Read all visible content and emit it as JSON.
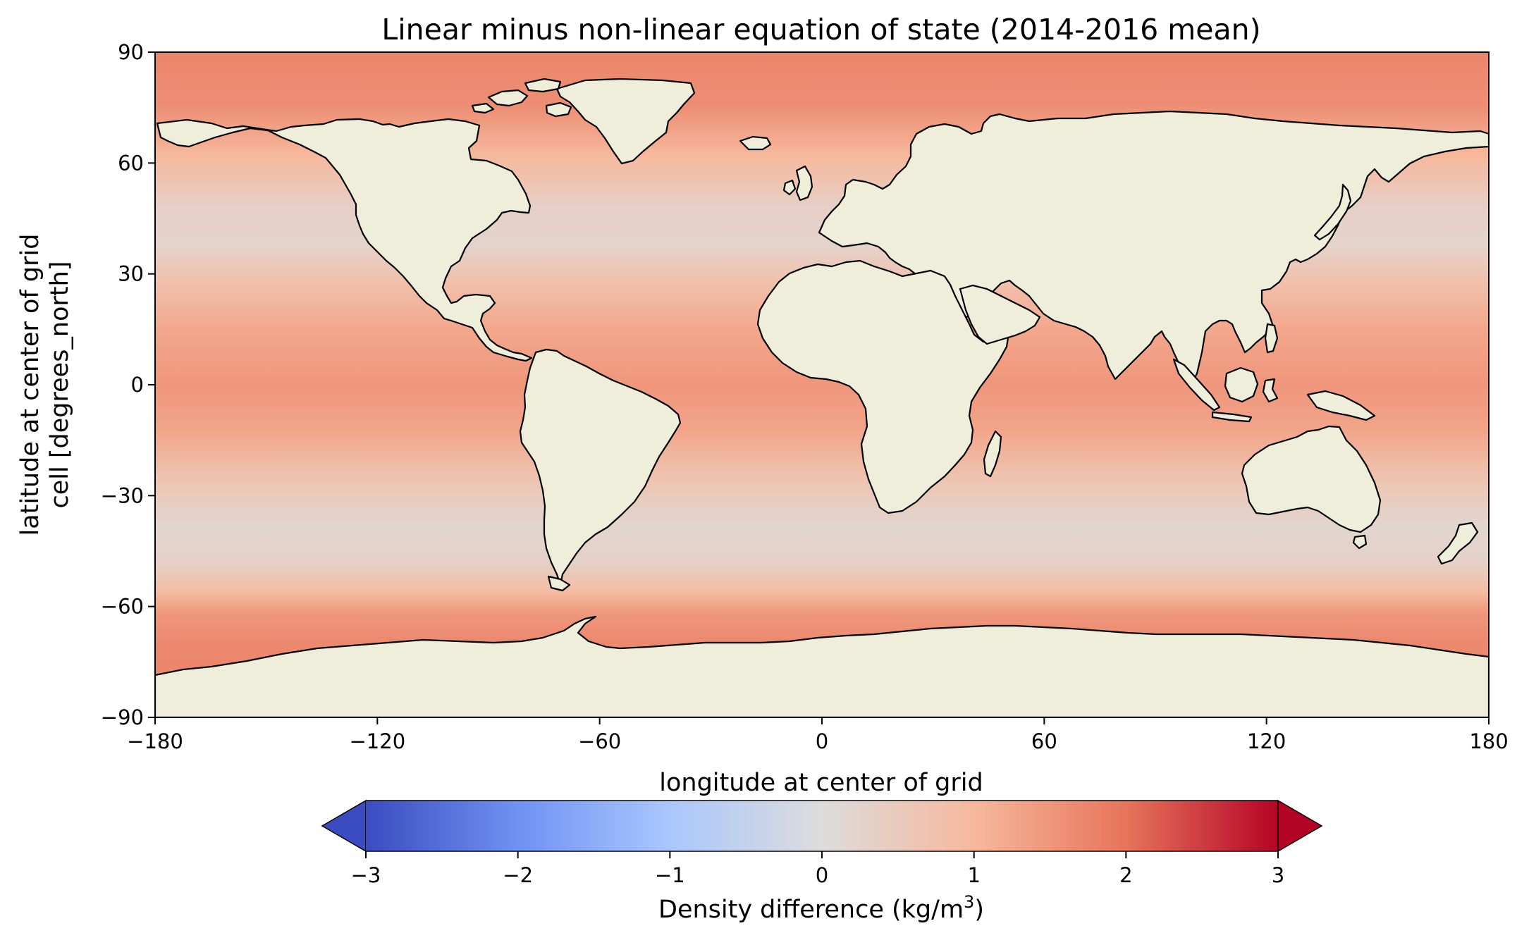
{
  "chart_data": {
    "type": "heatmap",
    "title": "Linear minus non-linear equation of state (2014-2016 mean)",
    "xlabel": "longitude at center of grid",
    "ylabel_lines": [
      "latitude at center of grid",
      "cell [degrees_north]"
    ],
    "xlim": [
      -180,
      180
    ],
    "ylim": [
      -90,
      90
    ],
    "x_ticks": [
      -180,
      -120,
      -60,
      0,
      60,
      120,
      180
    ],
    "x_tick_labels": [
      "−180",
      "−120",
      "−60",
      "0",
      "60",
      "120",
      "180"
    ],
    "y_ticks": [
      90,
      60,
      30,
      0,
      -30,
      -60,
      -90
    ],
    "y_tick_labels": [
      "90",
      "60",
      "30",
      "0",
      "−30",
      "−60",
      "−90"
    ],
    "colorbar": {
      "label": "Density difference (kg/m",
      "label_sup": "3",
      "label_end": ")",
      "colormap": "coolwarm",
      "extend": "both",
      "vmin": -3,
      "vmax": 3,
      "ticks": [
        -3,
        -2,
        -1,
        0,
        1,
        2,
        3
      ],
      "tick_labels": [
        "−3",
        "−2",
        "−1",
        "0",
        "1",
        "2",
        "3"
      ],
      "colors": [
        "#3b4cc0",
        "#6f92f3",
        "#aac7fd",
        "#dddcdc",
        "#f7b89c",
        "#e7745b",
        "#b40426"
      ]
    },
    "field_by_latitude": [
      {
        "lat": 90,
        "value": 1.75
      },
      {
        "lat": 75,
        "value": 1.6
      },
      {
        "lat": 62,
        "value": 1.0
      },
      {
        "lat": 48,
        "value": 0.35
      },
      {
        "lat": 38,
        "value": 0.25
      },
      {
        "lat": 28,
        "value": 0.75
      },
      {
        "lat": 15,
        "value": 1.25
      },
      {
        "lat": 0,
        "value": 1.5
      },
      {
        "lat": -12,
        "value": 1.3
      },
      {
        "lat": -25,
        "value": 0.7
      },
      {
        "lat": -38,
        "value": 0.2
      },
      {
        "lat": -48,
        "value": 0.3
      },
      {
        "lat": -56,
        "value": 0.9
      },
      {
        "lat": -62,
        "value": 1.5
      },
      {
        "lat": -70,
        "value": 1.7
      },
      {
        "lat": -90,
        "value": 1.75
      }
    ],
    "land_color": "#efeedb",
    "missing_color": "#ffffff"
  }
}
